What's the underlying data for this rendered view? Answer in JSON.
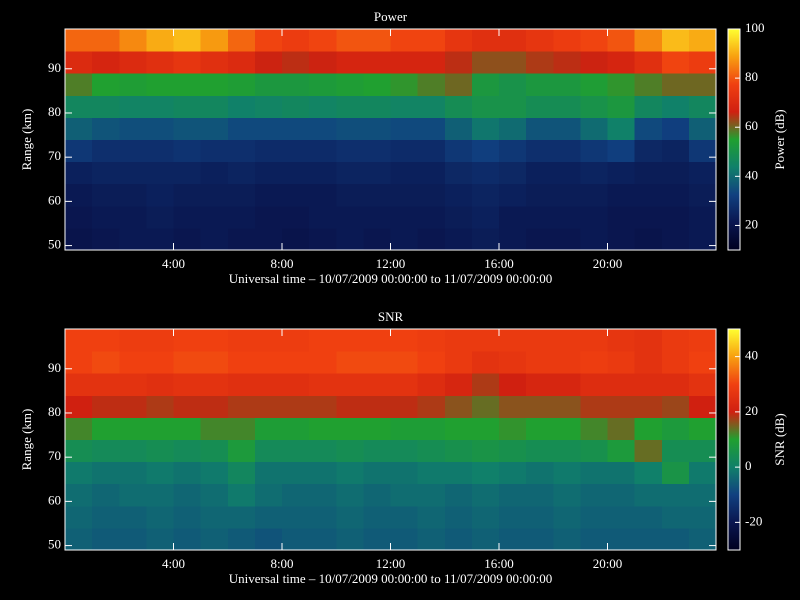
{
  "chart_data": [
    {
      "type": "heatmap",
      "title": "Power",
      "xlabel": "Universal time – 10/07/2009 00:00:00 to 11/07/2009 00:00:00",
      "ylabel": "Range (km)",
      "colorbar_label": "Power (dB)",
      "xbins": [
        0,
        1,
        2,
        3,
        4,
        5,
        6,
        7,
        8,
        9,
        10,
        11,
        12,
        13,
        14,
        15,
        16,
        17,
        18,
        19,
        20,
        21,
        22,
        23,
        24
      ],
      "ybins": [
        49,
        54,
        59,
        64,
        69,
        74,
        79,
        84,
        89,
        94,
        99
      ],
      "z": [
        [
          20,
          21,
          22,
          22,
          21,
          22,
          21,
          21,
          20,
          21,
          22,
          21,
          22,
          21,
          22,
          23,
          22,
          21,
          21,
          22,
          21,
          20,
          21,
          22
        ],
        [
          21,
          22,
          22,
          23,
          22,
          22,
          22,
          21,
          21,
          22,
          22,
          22,
          22,
          22,
          23,
          24,
          22,
          22,
          22,
          22,
          21,
          21,
          21,
          22
        ],
        [
          22,
          23,
          23,
          24,
          23,
          23,
          23,
          22,
          22,
          22,
          23,
          23,
          23,
          23,
          24,
          25,
          24,
          23,
          23,
          23,
          22,
          22,
          22,
          23
        ],
        [
          24,
          25,
          25,
          25,
          25,
          24,
          25,
          24,
          24,
          24,
          25,
          25,
          24,
          24,
          26,
          27,
          26,
          24,
          24,
          25,
          24,
          23,
          23,
          24
        ],
        [
          30,
          28,
          28,
          28,
          29,
          28,
          28,
          27,
          27,
          27,
          28,
          28,
          27,
          27,
          30,
          32,
          30,
          28,
          28,
          30,
          32,
          26,
          25,
          30
        ],
        [
          38,
          36,
          35,
          35,
          36,
          36,
          34,
          34,
          34,
          34,
          35,
          35,
          34,
          34,
          38,
          42,
          40,
          36,
          36,
          40,
          44,
          34,
          32,
          38
        ],
        [
          46,
          46,
          45,
          45,
          46,
          46,
          44,
          45,
          46,
          45,
          46,
          46,
          45,
          45,
          48,
          50,
          50,
          48,
          48,
          50,
          52,
          46,
          44,
          46
        ],
        [
          58,
          55,
          54,
          55,
          55,
          55,
          54,
          52,
          52,
          53,
          54,
          55,
          56,
          58,
          60,
          52,
          50,
          52,
          52,
          54,
          56,
          58,
          60,
          60
        ],
        [
          70,
          68,
          70,
          72,
          74,
          72,
          70,
          66,
          65,
          66,
          68,
          68,
          68,
          68,
          65,
          62,
          62,
          64,
          65,
          66,
          68,
          72,
          78,
          76
        ],
        [
          82,
          82,
          86,
          90,
          92,
          88,
          82,
          78,
          76,
          78,
          80,
          80,
          78,
          78,
          74,
          72,
          72,
          74,
          76,
          78,
          80,
          86,
          92,
          90
        ]
      ],
      "xlim": [
        0,
        24
      ],
      "ylim": [
        49,
        99
      ],
      "clim": [
        10,
        100
      ],
      "xticks": [
        {
          "value": 4,
          "label": "4:00"
        },
        {
          "value": 8,
          "label": "8:00"
        },
        {
          "value": 12,
          "label": "12:00"
        },
        {
          "value": 16,
          "label": "16:00"
        },
        {
          "value": 20,
          "label": "20:00"
        }
      ],
      "yticks": [
        50,
        60,
        70,
        80,
        90
      ],
      "cticks": [
        20,
        40,
        60,
        80,
        100
      ],
      "colorscale": [
        "#000020",
        "#0a1650",
        "#104080",
        "#10806a",
        "#20a030",
        "#d02010",
        "#f04010",
        "#f8a010",
        "#ffff30"
      ]
    },
    {
      "type": "heatmap",
      "title": "SNR",
      "xlabel": "Universal time – 10/07/2009 00:00:00 to 11/07/2009 00:00:00",
      "ylabel": "Range (km)",
      "colorbar_label": "SNR (dB)",
      "xbins": [
        0,
        1,
        2,
        3,
        4,
        5,
        6,
        7,
        8,
        9,
        10,
        11,
        12,
        13,
        14,
        15,
        16,
        17,
        18,
        19,
        20,
        21,
        22,
        23,
        24
      ],
      "ybins": [
        49,
        54,
        59,
        64,
        69,
        74,
        79,
        84,
        89,
        94,
        99
      ],
      "z": [
        [
          -5,
          -6,
          -6,
          -5,
          -6,
          -5,
          -6,
          -7,
          -6,
          -6,
          -5,
          -6,
          -6,
          -5,
          -6,
          -5,
          -6,
          -6,
          -5,
          -6,
          -6,
          -6,
          -6,
          -5
        ],
        [
          -4,
          -5,
          -5,
          -4,
          -5,
          -4,
          -4,
          -5,
          -5,
          -5,
          -4,
          -5,
          -5,
          -4,
          -5,
          -4,
          -5,
          -5,
          -4,
          -5,
          -5,
          -5,
          -4,
          -4
        ],
        [
          -3,
          -4,
          -3,
          -3,
          -4,
          -3,
          -1,
          -3,
          -4,
          -4,
          -3,
          -4,
          -3,
          -3,
          -4,
          -3,
          -4,
          -4,
          -3,
          -4,
          -4,
          -3,
          -3,
          -3
        ],
        [
          -1,
          -2,
          -2,
          -1,
          -2,
          -1,
          2,
          -2,
          -2,
          -2,
          -1,
          -2,
          -2,
          -1,
          -1,
          0,
          -1,
          -2,
          -1,
          -2,
          -2,
          0,
          6,
          -1
        ],
        [
          4,
          3,
          3,
          4,
          3,
          4,
          8,
          3,
          3,
          3,
          4,
          3,
          3,
          4,
          5,
          6,
          5,
          4,
          4,
          5,
          8,
          14,
          4,
          4
        ],
        [
          12,
          10,
          10,
          10,
          10,
          12,
          12,
          9,
          9,
          10,
          10,
          10,
          9,
          9,
          10,
          10,
          11,
          10,
          10,
          12,
          14,
          10,
          8,
          10
        ],
        [
          20,
          19,
          19,
          18,
          19,
          19,
          18,
          18,
          18,
          18,
          19,
          19,
          19,
          18,
          16,
          14,
          16,
          16,
          16,
          18,
          18,
          18,
          17,
          20
        ],
        [
          26,
          26,
          26,
          25,
          26,
          26,
          25,
          25,
          25,
          26,
          26,
          26,
          26,
          24,
          22,
          18,
          20,
          22,
          22,
          24,
          24,
          24,
          24,
          26
        ],
        [
          30,
          31,
          30,
          30,
          31,
          31,
          30,
          30,
          30,
          30,
          31,
          31,
          31,
          30,
          28,
          26,
          27,
          28,
          28,
          29,
          28,
          26,
          28,
          30
        ],
        [
          30,
          30,
          29,
          29,
          30,
          30,
          29,
          29,
          29,
          30,
          30,
          30,
          30,
          29,
          28,
          28,
          28,
          28,
          28,
          28,
          27,
          26,
          28,
          29
        ]
      ],
      "xlim": [
        0,
        24
      ],
      "ylim": [
        49,
        99
      ],
      "clim": [
        -30,
        50
      ],
      "xticks": [
        {
          "value": 4,
          "label": "4:00"
        },
        {
          "value": 8,
          "label": "8:00"
        },
        {
          "value": 12,
          "label": "12:00"
        },
        {
          "value": 16,
          "label": "16:00"
        },
        {
          "value": 20,
          "label": "20:00"
        }
      ],
      "yticks": [
        50,
        60,
        70,
        80,
        90
      ],
      "cticks": [
        -20,
        0,
        20,
        40
      ],
      "colorscale": [
        "#000020",
        "#0a1650",
        "#104080",
        "#10806a",
        "#20a030",
        "#d02010",
        "#f04010",
        "#f8a010",
        "#ffff30"
      ]
    }
  ]
}
